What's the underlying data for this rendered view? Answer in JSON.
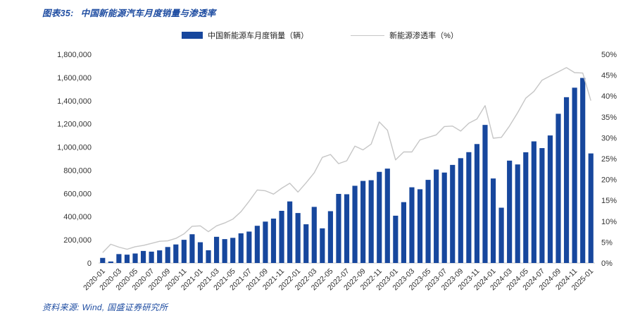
{
  "header": {
    "figure_label": "图表35:",
    "title": "中国新能源汽车月度销量与渗透率"
  },
  "legend": {
    "bar_label": "中国新能源车月度销量（辆）",
    "line_label": "新能源渗透率（%）"
  },
  "footer": {
    "source": "资料来源: Wind, 国盛证券研究所"
  },
  "colors": {
    "bar": "#17479D",
    "line": "#C6C6C6",
    "title_blue": "#1E4CA1",
    "axis_text": "#333333",
    "baseline": "#C8C8C8"
  },
  "chart_data": {
    "type": "bar",
    "title": "中国新能源汽车月度销量与渗透率",
    "xlabel": "",
    "ylabel_left": "中国新能源车月度销量（辆）",
    "ylabel_right": "新能源渗透率（%）",
    "grid": false,
    "legend_position": "top",
    "x_tick_every": 2,
    "left_axis": {
      "min": 0,
      "max": 1800000,
      "step": 200000
    },
    "right_axis": {
      "min": 0,
      "max": 50,
      "step": 5,
      "suffix": "%"
    },
    "categories": [
      "2020-01",
      "2020-02",
      "2020-03",
      "2020-04",
      "2020-05",
      "2020-06",
      "2020-07",
      "2020-08",
      "2020-09",
      "2020-10",
      "2020-11",
      "2020-12",
      "2021-01",
      "2021-02",
      "2021-03",
      "2021-04",
      "2021-05",
      "2021-06",
      "2021-07",
      "2021-08",
      "2021-09",
      "2021-10",
      "2021-11",
      "2021-12",
      "2022-01",
      "2022-02",
      "2022-03",
      "2022-04",
      "2022-05",
      "2022-06",
      "2022-07",
      "2022-08",
      "2022-09",
      "2022-10",
      "2022-11",
      "2022-12",
      "2023-01",
      "2023-02",
      "2023-03",
      "2023-04",
      "2023-05",
      "2023-06",
      "2023-07",
      "2023-08",
      "2023-09",
      "2023-10",
      "2023-11",
      "2023-12",
      "2024-01",
      "2024-02",
      "2024-03",
      "2024-04",
      "2024-05",
      "2024-06",
      "2024-07",
      "2024-08",
      "2024-09",
      "2024-10",
      "2024-11",
      "2024-12",
      "2025-01"
    ],
    "series": [
      {
        "name": "中国新能源车月度销量（辆）",
        "type": "bar",
        "axis": "left",
        "values": [
          44000,
          13000,
          77000,
          72000,
          82000,
          104000,
          98000,
          109000,
          138000,
          160000,
          200000,
          248000,
          179000,
          110000,
          226000,
          206000,
          217000,
          256000,
          271000,
          321000,
          357000,
          383000,
          450000,
          531000,
          431000,
          334000,
          484000,
          299000,
          447000,
          596000,
          593000,
          666000,
          708000,
          714000,
          786000,
          814000,
          408000,
          525000,
          653000,
          636000,
          717000,
          806000,
          780000,
          846000,
          904000,
          956000,
          1026000,
          1191000,
          729000,
          477000,
          883000,
          850000,
          955000,
          1049000,
          991000,
          1100000,
          1287000,
          1430000,
          1512000,
          1596000,
          945000
        ]
      },
      {
        "name": "新能源渗透率（%）",
        "type": "line",
        "axis": "right",
        "values": [
          2.5,
          4.5,
          3.8,
          3.3,
          3.9,
          4.2,
          4.7,
          5.2,
          5.3,
          5.9,
          7.0,
          8.8,
          8.9,
          7.5,
          8.9,
          9.6,
          10.5,
          12.3,
          14.8,
          17.5,
          17.3,
          16.5,
          17.9,
          19.1,
          17.0,
          19.2,
          21.6,
          25.3,
          26.0,
          23.8,
          24.5,
          28.0,
          27.1,
          28.5,
          33.8,
          31.8,
          24.7,
          26.6,
          26.6,
          29.5,
          30.1,
          30.7,
          32.7,
          32.8,
          31.6,
          33.5,
          34.5,
          37.7,
          29.9,
          30.1,
          32.8,
          36.0,
          39.5,
          41.1,
          43.8,
          44.8,
          45.8,
          46.8,
          45.6,
          45.5,
          38.9
        ]
      }
    ]
  }
}
